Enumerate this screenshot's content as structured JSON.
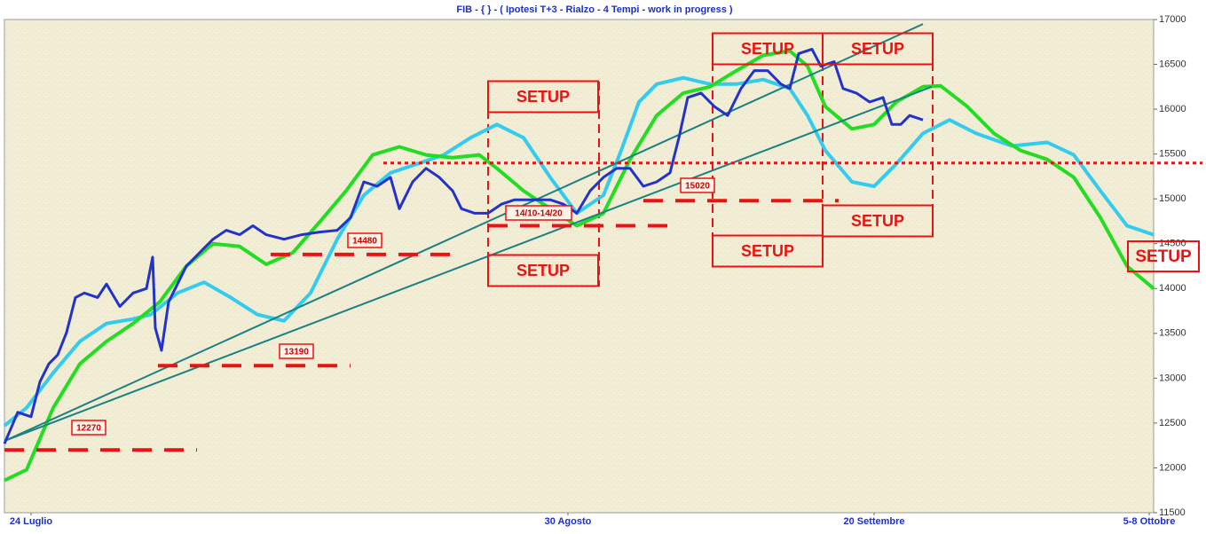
{
  "chart_data": {
    "type": "line",
    "title": "FIB  -  { } - ( Ipotesi T+3 - Rialzo - 4 Tempi - work in progress )",
    "xlim": [
      0,
      129.5
    ],
    "xticks": [
      {
        "value": 3,
        "label": "24 Luglio"
      },
      {
        "value": 63.5,
        "label": "30 Agosto"
      },
      {
        "value": 98,
        "label": "20 Settembre"
      },
      {
        "value": 129,
        "label": "5-8 Ottobre"
      }
    ],
    "ylim": [
      11500,
      17000
    ],
    "yticks": [
      11500,
      12000,
      12500,
      13000,
      13500,
      14000,
      14500,
      15000,
      15500,
      16000,
      16500,
      17000
    ],
    "series": [
      {
        "color": "#33ccee",
        "width": 4,
        "style": "solid",
        "x": [
          0,
          2.5,
          5.5,
          8.5,
          11.5,
          14.5,
          16.5,
          19.5,
          22.5,
          25.5,
          28.5,
          31.5,
          34.5,
          37.5,
          40.5,
          43.5,
          46.5,
          49.5,
          52.5,
          55.5,
          58.5,
          61.5,
          64.5,
          67.5,
          69.5,
          71.5,
          73.5,
          76.5,
          79.5,
          82.5,
          85.5,
          88.5,
          90.5,
          92.5,
          95.5,
          98,
          100.5,
          103.5,
          106.5,
          109.5,
          113.5,
          117.5,
          120.5,
          123.5,
          126.5,
          129.5
        ],
        "values": [
          12470,
          12670,
          13060,
          13410,
          13610,
          13660,
          13710,
          13950,
          14070,
          13900,
          13710,
          13640,
          13950,
          14550,
          15040,
          15290,
          15390,
          15490,
          15680,
          15830,
          15680,
          15240,
          14840,
          15040,
          15540,
          16080,
          16280,
          16350,
          16280,
          16280,
          16330,
          16230,
          15930,
          15540,
          15190,
          15140,
          15390,
          15730,
          15880,
          15730,
          15590,
          15630,
          15490,
          15090,
          14700,
          14600
        ]
      },
      {
        "color": "#22dd22",
        "width": 4,
        "style": "solid",
        "x": [
          0,
          2.5,
          5.5,
          8.5,
          11.5,
          14.5,
          17.5,
          20.5,
          23.5,
          26.5,
          29.5,
          32.5,
          35.5,
          38.5,
          41.5,
          44.5,
          47.5,
          50.5,
          53.5,
          55.5,
          58.5,
          61.5,
          64.5,
          67.5,
          70.5,
          73.5,
          76.5,
          79.5,
          82.5,
          85.5,
          88.5,
          90.5,
          92.5,
          95.5,
          98,
          100.5,
          103.5,
          105.5,
          108.5,
          111.5,
          114.5,
          117.5,
          120.5,
          123.5,
          126.5,
          129.5
        ],
        "values": [
          11860,
          11980,
          12670,
          13160,
          13410,
          13610,
          13850,
          14250,
          14500,
          14470,
          14270,
          14400,
          14740,
          15090,
          15490,
          15580,
          15490,
          15460,
          15490,
          15340,
          15090,
          14890,
          14700,
          14840,
          15440,
          15930,
          16180,
          16250,
          16430,
          16600,
          16650,
          16480,
          16030,
          15780,
          15830,
          16080,
          16250,
          16260,
          16030,
          15730,
          15540,
          15440,
          15240,
          14790,
          14250,
          14000
        ]
      },
      {
        "color": "#1a8080",
        "width": 2,
        "style": "solid",
        "x": [
          0,
          103.5
        ],
        "values": [
          12300,
          16950
        ]
      },
      {
        "color": "#1a8080",
        "width": 2,
        "style": "solid",
        "x": [
          0,
          104.5
        ],
        "values": [
          12300,
          16250
        ]
      },
      {
        "color": "#ee1111",
        "width": 4,
        "style": "dashed",
        "x": [
          0,
          21.7
        ],
        "values": [
          12200,
          12200
        ]
      },
      {
        "color": "#ee1111",
        "width": 4,
        "style": "dashed",
        "x": [
          17.3,
          39
        ],
        "values": [
          13140,
          13140
        ]
      },
      {
        "color": "#ee1111",
        "width": 4,
        "style": "dashed",
        "x": [
          30,
          51.5
        ],
        "values": [
          14380,
          14380
        ]
      },
      {
        "color": "#ee1111",
        "width": 4,
        "style": "dashed",
        "x": [
          54.5,
          76
        ],
        "values": [
          14700,
          14700
        ]
      },
      {
        "color": "#ee1111",
        "width": 4,
        "style": "dashed",
        "x": [
          72,
          94
        ],
        "values": [
          14980,
          14980
        ]
      },
      {
        "color": "#ee1111",
        "width": 3,
        "style": "dotted",
        "x": [
          42.7,
          135
        ],
        "values": [
          15400,
          15400
        ]
      },
      {
        "color": "#2233cc",
        "width": 3,
        "style": "solid",
        "x": [
          0,
          1.5,
          3,
          4,
          5,
          6,
          7,
          8,
          9,
          10.5,
          11.5,
          13,
          14.5,
          16,
          16.7,
          17,
          17.7,
          18.5,
          19.5,
          20.5,
          22,
          23.5,
          25,
          26.5,
          28,
          29.5,
          31.5,
          33.5,
          35.5,
          37.5,
          39,
          40.5,
          42,
          43.5,
          44.5,
          46,
          47.5,
          49,
          50.5,
          51.5,
          53,
          54.5,
          56,
          57.5,
          59.5,
          61.5,
          63,
          64.5,
          66,
          67.5,
          69,
          70.5,
          72,
          73.5,
          75,
          76,
          77,
          78.5,
          80,
          81.5,
          83,
          84.5,
          86,
          87.5,
          88.5,
          89.5,
          91,
          92,
          93.5,
          94.5,
          96,
          97.5,
          99,
          100,
          101,
          102,
          103.5
        ],
        "values": [
          12270,
          12620,
          12570,
          12960,
          13160,
          13260,
          13510,
          13900,
          13950,
          13900,
          14050,
          13800,
          13950,
          14000,
          14350,
          13560,
          13310,
          13850,
          14050,
          14250,
          14400,
          14550,
          14650,
          14600,
          14700,
          14600,
          14550,
          14600,
          14630,
          14650,
          14790,
          15190,
          15140,
          15240,
          14890,
          15190,
          15340,
          15240,
          15090,
          14890,
          14840,
          14840,
          14940,
          14990,
          14990,
          14990,
          14940,
          14840,
          15090,
          15240,
          15340,
          15340,
          15140,
          15190,
          15290,
          15680,
          16130,
          16180,
          16030,
          15930,
          16230,
          16430,
          16430,
          16280,
          16230,
          16620,
          16670,
          16480,
          16530,
          16230,
          16180,
          16080,
          16130,
          15830,
          15830,
          15930,
          15880
        ]
      }
    ],
    "annotations": [
      "12270",
      "13190",
      "14480",
      "15020",
      "14/10-14/20",
      "SETUP",
      "SETUP",
      "SETUP",
      "SETUP",
      "SETUP",
      "SETUP",
      "SETUP"
    ]
  }
}
